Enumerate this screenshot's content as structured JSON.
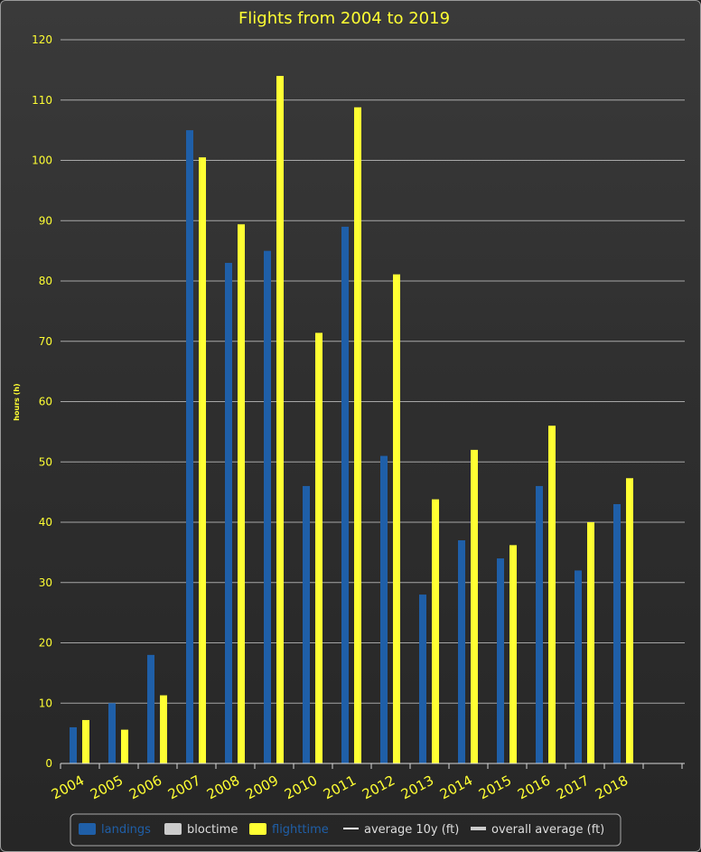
{
  "chart_data": {
    "type": "bar",
    "title": "Flights from 2004 to 2019",
    "ylabel": "hours (h)",
    "xlabel": "",
    "ylim": [
      0,
      120
    ],
    "yticks": [
      0,
      10,
      20,
      30,
      40,
      50,
      60,
      70,
      80,
      90,
      100,
      110,
      120
    ],
    "grid": true,
    "legend_position": "bottom",
    "categories": [
      "2004",
      "2005",
      "2006",
      "2007",
      "2008",
      "2009",
      "2010",
      "2011",
      "2012",
      "2013",
      "2014",
      "2015",
      "2016",
      "2017",
      "2018"
    ],
    "series": [
      {
        "name": "landings",
        "color": "#1f5fa8",
        "values": [
          6,
          10,
          18,
          105,
          83,
          85,
          46,
          89,
          51,
          28,
          37,
          34,
          46,
          32,
          43
        ]
      },
      {
        "name": "flighttime",
        "color": "#ffff33",
        "values": [
          7.2,
          5.6,
          11.3,
          100.5,
          89.4,
          114,
          71.4,
          108.8,
          81.1,
          43.8,
          52,
          36.2,
          56,
          40,
          47.3
        ]
      }
    ],
    "legend": [
      {
        "name": "landings",
        "color": "#1f5fa8",
        "text_color": "#1f5fa8",
        "symbol": "box"
      },
      {
        "name": "bloctime",
        "color": "#cccccc",
        "text_color": "#dddddd",
        "symbol": "box"
      },
      {
        "name": "flighttime",
        "color": "#ffff33",
        "text_color": "#1f5fa8",
        "symbol": "box"
      },
      {
        "name": "average 10y (ft)",
        "color": "#ffffff",
        "text_color": "#dddddd",
        "symbol": "line"
      },
      {
        "name": "overall average (ft)",
        "color": "#cccccc",
        "text_color": "#dddddd",
        "symbol": "thickline"
      }
    ]
  }
}
